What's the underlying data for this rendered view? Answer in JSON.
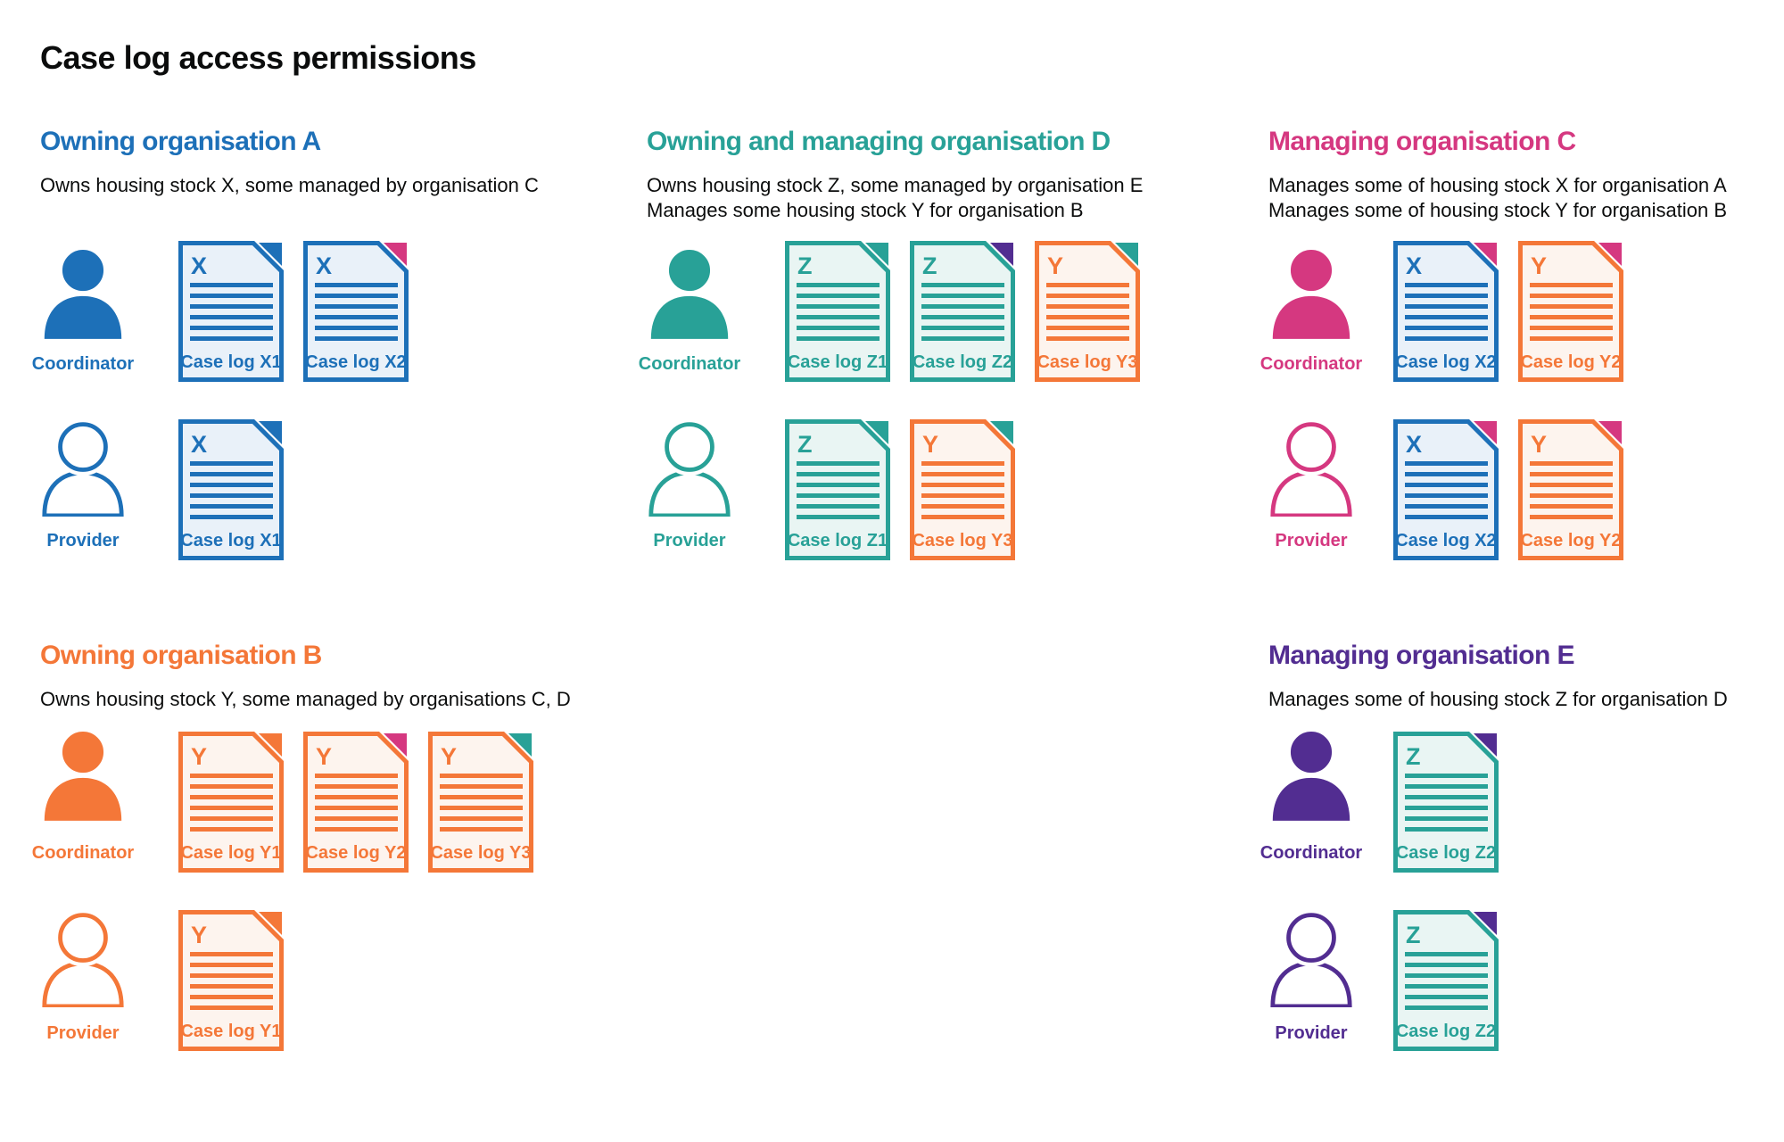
{
  "title": "Case log access permissions",
  "palette": {
    "blue": "#1d70b8",
    "teal": "#28a197",
    "orange": "#f47738",
    "pink": "#d53880",
    "purple": "#522d91",
    "text": "#0b0c0c",
    "blue_bg": "#e9f1f9",
    "teal_bg": "#e9f5f3",
    "orange_bg": "#fdf4ee"
  },
  "sections": [
    {
      "id": "owning-organisation-a",
      "title": "Owning organisation A",
      "color": "blue",
      "description": [
        "Owns housing stock X, some managed by organisation C"
      ],
      "rows": [
        {
          "role": "Coordinator",
          "docs": [
            {
              "letter": "X",
              "label": "Case log X1",
              "doc_color": "blue",
              "fold_color": "blue"
            },
            {
              "letter": "X",
              "label": "Case log X2",
              "doc_color": "blue",
              "fold_color": "pink"
            }
          ]
        },
        {
          "role": "Provider",
          "docs": [
            {
              "letter": "X",
              "label": "Case log X1",
              "doc_color": "blue",
              "fold_color": "blue"
            }
          ]
        }
      ]
    },
    {
      "id": "owning-and-managing-organisation-d",
      "title": "Owning and managing organisation D",
      "color": "teal",
      "description": [
        "Owns housing stock Z, some managed by organisation E",
        "Manages some housing stock Y for organisation B"
      ],
      "rows": [
        {
          "role": "Coordinator",
          "docs": [
            {
              "letter": "Z",
              "label": "Case log Z1",
              "doc_color": "teal",
              "fold_color": "teal"
            },
            {
              "letter": "Z",
              "label": "Case log Z2",
              "doc_color": "teal",
              "fold_color": "purple"
            },
            {
              "letter": "Y",
              "label": "Case log Y3",
              "doc_color": "orange",
              "fold_color": "teal"
            }
          ]
        },
        {
          "role": "Provider",
          "docs": [
            {
              "letter": "Z",
              "label": "Case log Z1",
              "doc_color": "teal",
              "fold_color": "teal"
            },
            {
              "letter": "Y",
              "label": "Case log Y3",
              "doc_color": "orange",
              "fold_color": "teal"
            }
          ]
        }
      ]
    },
    {
      "id": "managing-organisation-c",
      "title": "Managing organisation C",
      "color": "pink",
      "description": [
        "Manages some of housing stock X for organisation A",
        "Manages some of housing stock Y for organisation B"
      ],
      "rows": [
        {
          "role": "Coordinator",
          "docs": [
            {
              "letter": "X",
              "label": "Case log X2",
              "doc_color": "blue",
              "fold_color": "pink"
            },
            {
              "letter": "Y",
              "label": "Case log Y2",
              "doc_color": "orange",
              "fold_color": "pink"
            }
          ]
        },
        {
          "role": "Provider",
          "docs": [
            {
              "letter": "X",
              "label": "Case log X2",
              "doc_color": "blue",
              "fold_color": "pink"
            },
            {
              "letter": "Y",
              "label": "Case log Y2",
              "doc_color": "orange",
              "fold_color": "pink"
            }
          ]
        }
      ]
    },
    {
      "id": "owning-organisation-b",
      "title": "Owning organisation B",
      "color": "orange",
      "description": [
        "Owns housing stock Y, some managed by organisations C, D"
      ],
      "rows": [
        {
          "role": "Coordinator",
          "docs": [
            {
              "letter": "Y",
              "label": "Case log Y1",
              "doc_color": "orange",
              "fold_color": "orange"
            },
            {
              "letter": "Y",
              "label": "Case log Y2",
              "doc_color": "orange",
              "fold_color": "pink"
            },
            {
              "letter": "Y",
              "label": "Case log Y3",
              "doc_color": "orange",
              "fold_color": "teal"
            }
          ]
        },
        {
          "role": "Provider",
          "docs": [
            {
              "letter": "Y",
              "label": "Case log Y1",
              "doc_color": "orange",
              "fold_color": "orange"
            }
          ]
        }
      ]
    },
    {
      "id": "managing-organisation-e",
      "title": "Managing organisation E",
      "color": "purple",
      "description": [
        "Manages some of housing stock Z for organisation D"
      ],
      "rows": [
        {
          "role": "Coordinator",
          "docs": [
            {
              "letter": "Z",
              "label": "Case log Z2",
              "doc_color": "teal",
              "fold_color": "purple"
            }
          ]
        },
        {
          "role": "Provider",
          "docs": [
            {
              "letter": "Z",
              "label": "Case log Z2",
              "doc_color": "teal",
              "fold_color": "purple"
            }
          ]
        }
      ]
    }
  ]
}
